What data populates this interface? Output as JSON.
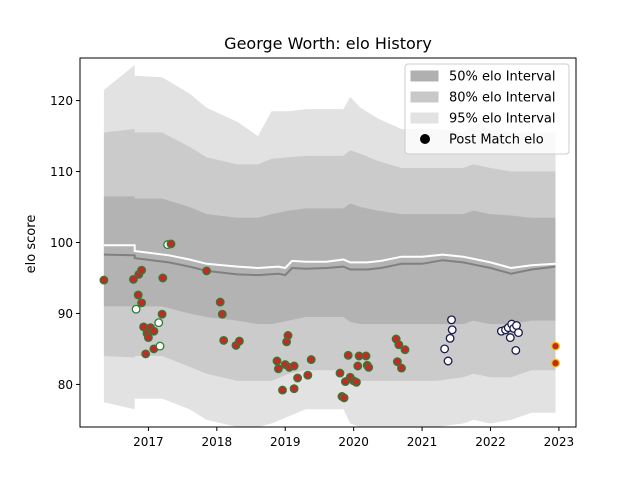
{
  "chart_data": {
    "type": "area",
    "title": "George Worth: elo History",
    "xlabel": "",
    "ylabel": "elo score",
    "xlim": [
      2016.0,
      2023.25
    ],
    "ylim": [
      74,
      126
    ],
    "x_ticks": [
      {
        "value": 2017,
        "label": "2017"
      },
      {
        "value": 2018,
        "label": "2018"
      },
      {
        "value": 2019,
        "label": "2019"
      },
      {
        "value": 2020,
        "label": "2020"
      },
      {
        "value": 2021,
        "label": "2021"
      },
      {
        "value": 2022,
        "label": "2022"
      },
      {
        "value": 2023,
        "label": "2023"
      }
    ],
    "y_ticks": [
      80,
      90,
      100,
      110,
      120
    ],
    "legend": {
      "placement": "top-right",
      "entries": [
        {
          "label": "50% elo Interval",
          "color": "#b0b0b0",
          "kind": "patch"
        },
        {
          "label": "80% elo Interval",
          "color": "#c8c8c8",
          "kind": "patch"
        },
        {
          "label": "95% elo Interval",
          "color": "#e2e2e2",
          "kind": "patch"
        },
        {
          "label": "Post Match elo",
          "color": "#000000",
          "kind": "marker"
        }
      ]
    },
    "bands": [
      {
        "name": "95% elo Interval",
        "color": "#e2e2e2",
        "x": [
          2016.35,
          2016.8,
          2016.8,
          2017.2,
          2017.6,
          2017.85,
          2018.3,
          2018.6,
          2018.8,
          2019.05,
          2019.3,
          2019.6,
          2019.85,
          2019.95,
          2020.1,
          2020.35,
          2020.7,
          2020.9,
          2021.2,
          2021.6,
          2021.75,
          2022.0,
          2022.3,
          2022.6,
          2022.95
        ],
        "upper": [
          121.5,
          125.0,
          123.5,
          123.3,
          121.0,
          119.0,
          117.0,
          115.0,
          118.5,
          118.5,
          118.8,
          118.8,
          118.8,
          120.5,
          119.0,
          117.5,
          116.0,
          116.0,
          116.0,
          115.5,
          116.5,
          116.0,
          115.5,
          115.5,
          115.5
        ],
        "lower": [
          77.5,
          76.5,
          78.0,
          78.0,
          76.5,
          75.0,
          74.0,
          74.0,
          74.5,
          75.5,
          76.5,
          76.5,
          76.5,
          74.5,
          74.0,
          74.0,
          74.0,
          74.0,
          74.0,
          74.5,
          75.0,
          74.5,
          75.0,
          76.0,
          76.0
        ]
      },
      {
        "name": "80% elo Interval",
        "color": "#cbcbcb",
        "x": [
          2016.35,
          2016.8,
          2016.8,
          2017.2,
          2017.6,
          2017.85,
          2018.3,
          2018.6,
          2018.8,
          2019.05,
          2019.3,
          2019.6,
          2019.85,
          2019.95,
          2020.1,
          2020.35,
          2020.7,
          2020.9,
          2021.2,
          2021.6,
          2021.75,
          2022.0,
          2022.3,
          2022.6,
          2022.95
        ],
        "upper": [
          115.5,
          116.0,
          115.5,
          115.5,
          113.5,
          112.0,
          111.0,
          111.0,
          111.8,
          112.0,
          112.2,
          112.2,
          112.2,
          113.0,
          112.5,
          111.5,
          110.5,
          110.5,
          110.5,
          110.5,
          111.0,
          110.5,
          110.0,
          110.0,
          110.0
        ],
        "lower": [
          84.0,
          83.8,
          84.0,
          84.0,
          82.5,
          81.5,
          80.5,
          80.5,
          80.5,
          81.5,
          82.0,
          82.0,
          82.0,
          80.8,
          80.5,
          80.5,
          80.5,
          80.5,
          80.5,
          81.0,
          81.5,
          81.0,
          81.0,
          82.0,
          82.0
        ]
      },
      {
        "name": "50% elo Interval",
        "color": "#b3b3b3",
        "x": [
          2016.35,
          2016.8,
          2016.8,
          2017.2,
          2017.6,
          2017.85,
          2018.3,
          2018.6,
          2018.8,
          2019.05,
          2019.3,
          2019.6,
          2019.85,
          2019.95,
          2020.1,
          2020.35,
          2020.7,
          2020.9,
          2021.2,
          2021.6,
          2021.75,
          2022.0,
          2022.3,
          2022.6,
          2022.95
        ],
        "upper": [
          106.5,
          106.5,
          106.2,
          106.2,
          105.0,
          104.0,
          103.5,
          103.5,
          104.0,
          104.5,
          104.8,
          104.8,
          104.8,
          105.5,
          105.0,
          104.5,
          104.0,
          104.0,
          104.0,
          104.0,
          104.5,
          104.0,
          103.8,
          103.5,
          103.5
        ],
        "lower": [
          91.0,
          91.0,
          91.0,
          91.0,
          90.0,
          89.5,
          89.0,
          88.5,
          88.5,
          89.0,
          89.5,
          89.5,
          89.5,
          88.8,
          88.5,
          88.5,
          88.5,
          88.5,
          88.5,
          88.5,
          89.0,
          88.5,
          88.5,
          89.0,
          89.0
        ]
      }
    ],
    "series": [
      {
        "name": "",
        "kind": "median-line",
        "color": "#808080",
        "x": [
          2016.35,
          2016.8,
          2016.8,
          2017.3,
          2017.6,
          2017.85,
          2018.3,
          2018.6,
          2018.9,
          2019.0,
          2019.1,
          2019.3,
          2019.6,
          2019.85,
          2019.95,
          2020.2,
          2020.4,
          2020.7,
          2021.0,
          2021.3,
          2021.6,
          2021.8,
          2022.0,
          2022.3,
          2022.6,
          2022.95
        ],
        "y": [
          98.3,
          98.2,
          97.8,
          97.2,
          96.6,
          96.0,
          95.5,
          95.4,
          95.6,
          95.4,
          96.4,
          96.3,
          96.4,
          96.6,
          96.2,
          96.2,
          96.4,
          97.0,
          97.0,
          97.5,
          97.2,
          96.8,
          96.4,
          95.6,
          96.2,
          96.6
        ]
      },
      {
        "name": "",
        "kind": "mean-line",
        "color": "#ffffff",
        "x": [
          2016.35,
          2016.8,
          2016.8,
          2017.3,
          2017.6,
          2017.85,
          2018.3,
          2018.6,
          2018.9,
          2019.0,
          2019.1,
          2019.3,
          2019.6,
          2019.85,
          2019.95,
          2020.2,
          2020.4,
          2020.7,
          2021.0,
          2021.3,
          2021.6,
          2021.8,
          2022.0,
          2022.3,
          2022.6,
          2022.95
        ],
        "y": [
          99.6,
          99.6,
          98.8,
          98.2,
          97.6,
          97.0,
          96.6,
          96.4,
          96.6,
          96.4,
          97.4,
          97.3,
          97.3,
          97.6,
          97.2,
          97.2,
          97.4,
          98.0,
          98.0,
          98.3,
          98.0,
          97.6,
          97.2,
          96.4,
          96.8,
          97.0
        ]
      }
    ],
    "points": [
      {
        "x": 2016.35,
        "y": 94.7,
        "fill": "#c62828",
        "edge": "#2e7d32"
      },
      {
        "x": 2016.78,
        "y": 94.8,
        "fill": "#c62828",
        "edge": "#2e7d32"
      },
      {
        "x": 2016.86,
        "y": 95.5,
        "fill": "#c62828",
        "edge": "#2e7d32"
      },
      {
        "x": 2016.9,
        "y": 96.1,
        "fill": "#c62828",
        "edge": "#2e7d32"
      },
      {
        "x": 2016.85,
        "y": 92.6,
        "fill": "#c62828",
        "edge": "#2e7d32"
      },
      {
        "x": 2016.9,
        "y": 91.5,
        "fill": "#c62828",
        "edge": "#2e7d32"
      },
      {
        "x": 2016.82,
        "y": 90.6,
        "fill": "#ffffff",
        "edge": "#2e7d32"
      },
      {
        "x": 2016.93,
        "y": 88.1,
        "fill": "#c62828",
        "edge": "#2e7d32"
      },
      {
        "x": 2016.98,
        "y": 87.2,
        "fill": "#c62828",
        "edge": "#2e7d32"
      },
      {
        "x": 2017.0,
        "y": 86.6,
        "fill": "#c62828",
        "edge": "#2e7d32"
      },
      {
        "x": 2017.03,
        "y": 88.0,
        "fill": "#c62828",
        "edge": "#2e7d32"
      },
      {
        "x": 2017.08,
        "y": 87.5,
        "fill": "#c62828",
        "edge": "#2e7d32"
      },
      {
        "x": 2016.96,
        "y": 84.3,
        "fill": "#c62828",
        "edge": "#2e7d32"
      },
      {
        "x": 2017.08,
        "y": 85.0,
        "fill": "#c62828",
        "edge": "#2e7d32"
      },
      {
        "x": 2017.15,
        "y": 88.7,
        "fill": "#ffffff",
        "edge": "#2e7d32"
      },
      {
        "x": 2017.17,
        "y": 85.4,
        "fill": "#ffffff",
        "edge": "#2e7d32"
      },
      {
        "x": 2017.2,
        "y": 89.9,
        "fill": "#c62828",
        "edge": "#2e7d32"
      },
      {
        "x": 2017.21,
        "y": 95.0,
        "fill": "#c62828",
        "edge": "#2e7d32"
      },
      {
        "x": 2017.28,
        "y": 99.7,
        "fill": "#ffffff",
        "edge": "#2e7d32"
      },
      {
        "x": 2017.33,
        "y": 99.8,
        "fill": "#c62828",
        "edge": "#2e7d32"
      },
      {
        "x": 2017.85,
        "y": 96.0,
        "fill": "#c62828",
        "edge": "#2e7d32"
      },
      {
        "x": 2018.05,
        "y": 91.6,
        "fill": "#c62828",
        "edge": "#2e7d32"
      },
      {
        "x": 2018.08,
        "y": 89.9,
        "fill": "#c62828",
        "edge": "#2e7d32"
      },
      {
        "x": 2018.1,
        "y": 86.2,
        "fill": "#c62828",
        "edge": "#2e7d32"
      },
      {
        "x": 2018.28,
        "y": 85.5,
        "fill": "#c62828",
        "edge": "#2e7d32"
      },
      {
        "x": 2018.33,
        "y": 86.1,
        "fill": "#c62828",
        "edge": "#2e7d32"
      },
      {
        "x": 2018.88,
        "y": 83.3,
        "fill": "#c62828",
        "edge": "#2e7d32"
      },
      {
        "x": 2018.9,
        "y": 82.2,
        "fill": "#c62828",
        "edge": "#2e7d32"
      },
      {
        "x": 2018.96,
        "y": 79.2,
        "fill": "#c62828",
        "edge": "#2e7d32"
      },
      {
        "x": 2019.0,
        "y": 82.8,
        "fill": "#c62828",
        "edge": "#2e7d32"
      },
      {
        "x": 2019.02,
        "y": 86.0,
        "fill": "#c62828",
        "edge": "#2e7d32"
      },
      {
        "x": 2019.04,
        "y": 86.9,
        "fill": "#c62828",
        "edge": "#2e7d32"
      },
      {
        "x": 2019.06,
        "y": 82.4,
        "fill": "#c62828",
        "edge": "#2e7d32"
      },
      {
        "x": 2019.13,
        "y": 82.6,
        "fill": "#c62828",
        "edge": "#2e7d32"
      },
      {
        "x": 2019.13,
        "y": 79.4,
        "fill": "#c62828",
        "edge": "#2e7d32"
      },
      {
        "x": 2019.18,
        "y": 80.9,
        "fill": "#c62828",
        "edge": "#2e7d32"
      },
      {
        "x": 2019.33,
        "y": 81.3,
        "fill": "#c62828",
        "edge": "#2e7d32"
      },
      {
        "x": 2019.38,
        "y": 83.5,
        "fill": "#c62828",
        "edge": "#2e7d32"
      },
      {
        "x": 2019.8,
        "y": 81.6,
        "fill": "#c62828",
        "edge": "#2e7d32"
      },
      {
        "x": 2019.83,
        "y": 78.3,
        "fill": "#c62828",
        "edge": "#2e7d32"
      },
      {
        "x": 2019.86,
        "y": 78.1,
        "fill": "#c62828",
        "edge": "#2e7d32"
      },
      {
        "x": 2019.88,
        "y": 80.4,
        "fill": "#c62828",
        "edge": "#2e7d32"
      },
      {
        "x": 2019.92,
        "y": 84.1,
        "fill": "#c62828",
        "edge": "#2e7d32"
      },
      {
        "x": 2019.95,
        "y": 81.0,
        "fill": "#c62828",
        "edge": "#2e7d32"
      },
      {
        "x": 2020.0,
        "y": 80.5,
        "fill": "#c62828",
        "edge": "#2e7d32"
      },
      {
        "x": 2020.04,
        "y": 80.3,
        "fill": "#c62828",
        "edge": "#2e7d32"
      },
      {
        "x": 2020.06,
        "y": 82.6,
        "fill": "#c62828",
        "edge": "#2e7d32"
      },
      {
        "x": 2020.08,
        "y": 84.0,
        "fill": "#c62828",
        "edge": "#2e7d32"
      },
      {
        "x": 2020.18,
        "y": 84.0,
        "fill": "#c62828",
        "edge": "#2e7d32"
      },
      {
        "x": 2020.2,
        "y": 82.7,
        "fill": "#c62828",
        "edge": "#2e7d32"
      },
      {
        "x": 2020.22,
        "y": 82.4,
        "fill": "#c62828",
        "edge": "#2e7d32"
      },
      {
        "x": 2020.62,
        "y": 86.4,
        "fill": "#c62828",
        "edge": "#2e7d32"
      },
      {
        "x": 2020.66,
        "y": 85.6,
        "fill": "#c62828",
        "edge": "#2e7d32"
      },
      {
        "x": 2020.64,
        "y": 83.2,
        "fill": "#c62828",
        "edge": "#2e7d32"
      },
      {
        "x": 2020.7,
        "y": 82.3,
        "fill": "#c62828",
        "edge": "#2e7d32"
      },
      {
        "x": 2020.75,
        "y": 84.9,
        "fill": "#c62828",
        "edge": "#2e7d32"
      },
      {
        "x": 2021.33,
        "y": 85.0,
        "fill": "#ffffff",
        "edge": "#1a1a4e"
      },
      {
        "x": 2021.38,
        "y": 83.3,
        "fill": "#ffffff",
        "edge": "#1a1a4e"
      },
      {
        "x": 2021.41,
        "y": 86.5,
        "fill": "#ffffff",
        "edge": "#1a1a4e"
      },
      {
        "x": 2021.43,
        "y": 89.1,
        "fill": "#ffffff",
        "edge": "#1a1a4e"
      },
      {
        "x": 2021.44,
        "y": 87.7,
        "fill": "#ffffff",
        "edge": "#1a1a4e"
      },
      {
        "x": 2022.16,
        "y": 87.5,
        "fill": "#ffffff",
        "edge": "#1a1a4e"
      },
      {
        "x": 2022.22,
        "y": 87.7,
        "fill": "#ffffff",
        "edge": "#1a1a4e"
      },
      {
        "x": 2022.26,
        "y": 88.0,
        "fill": "#ffffff",
        "edge": "#1a1a4e"
      },
      {
        "x": 2022.29,
        "y": 86.6,
        "fill": "#ffffff",
        "edge": "#1a1a4e"
      },
      {
        "x": 2022.31,
        "y": 88.5,
        "fill": "#ffffff",
        "edge": "#1a1a4e"
      },
      {
        "x": 2022.34,
        "y": 87.9,
        "fill": "#ffffff",
        "edge": "#1a1a4e"
      },
      {
        "x": 2022.37,
        "y": 84.8,
        "fill": "#ffffff",
        "edge": "#1a1a4e"
      },
      {
        "x": 2022.38,
        "y": 88.3,
        "fill": "#ffffff",
        "edge": "#1a1a4e"
      },
      {
        "x": 2022.41,
        "y": 87.3,
        "fill": "#ffffff",
        "edge": "#1a1a4e"
      },
      {
        "x": 2022.95,
        "y": 85.4,
        "fill": "#c62828",
        "edge": "#f2c200"
      },
      {
        "x": 2022.95,
        "y": 83.0,
        "fill": "#c62828",
        "edge": "#f2c200"
      }
    ]
  }
}
